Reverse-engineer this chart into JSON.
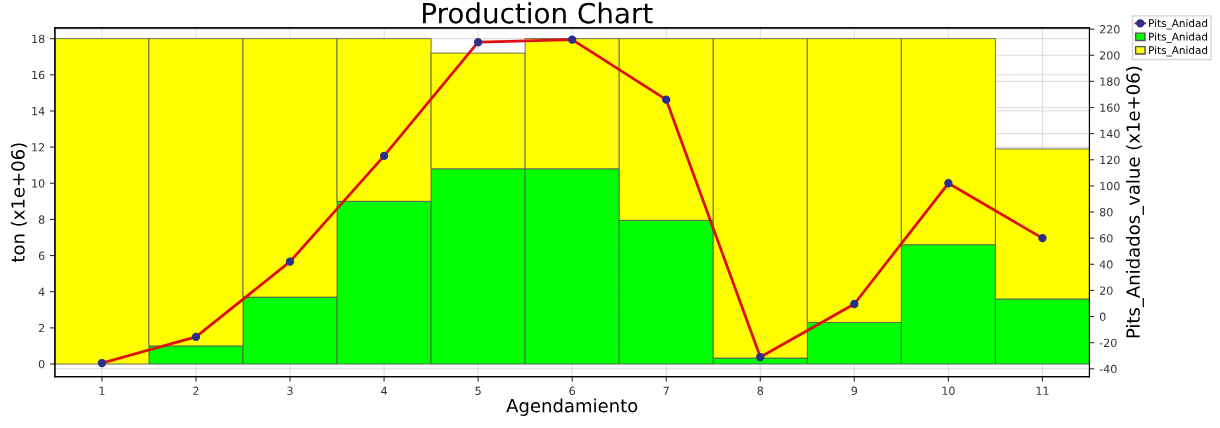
{
  "chart_data": {
    "type": "bar",
    "title": "Production Chart",
    "xlabel": "Agendamiento",
    "ylabel": "ton (x1e+06)",
    "y2label": "Pits_Anidados_value (x1e+06)",
    "categories": [
      "1",
      "2",
      "3",
      "4",
      "5",
      "6",
      "7",
      "8",
      "9",
      "10",
      "11"
    ],
    "stacked": true,
    "series": [
      {
        "name": "Pits_Anidad",
        "type": "line",
        "axis": "y2",
        "color": "#dd1111",
        "marker": "circle",
        "values": [
          -35.6,
          -15.6,
          42,
          123,
          210,
          212,
          166,
          -31,
          9.6,
          102,
          60
        ]
      },
      {
        "name": "Pits_Anidad",
        "color": "#00ff00",
        "values": [
          null,
          1.0,
          3.7,
          9.0,
          10.8,
          10.8,
          7.95,
          0.33,
          2.3,
          6.6,
          3.6
        ]
      },
      {
        "name": "Pits_Anidad",
        "color": "#ffff00",
        "values": [
          18,
          17,
          14.3,
          9,
          6.4,
          7.2,
          10.05,
          17.67,
          15.7,
          11.4,
          8.3
        ]
      }
    ],
    "ylim": [
      -0.7,
      18.6
    ],
    "yticks": [
      0,
      2,
      4,
      6,
      8,
      10,
      12,
      14,
      16,
      18
    ],
    "y2lim": [
      -46,
      221
    ],
    "y2ticks": [
      -40,
      -20,
      0,
      20,
      40,
      60,
      80,
      100,
      120,
      140,
      160,
      180,
      200,
      220
    ],
    "grid": "y2",
    "legend": "top right"
  }
}
